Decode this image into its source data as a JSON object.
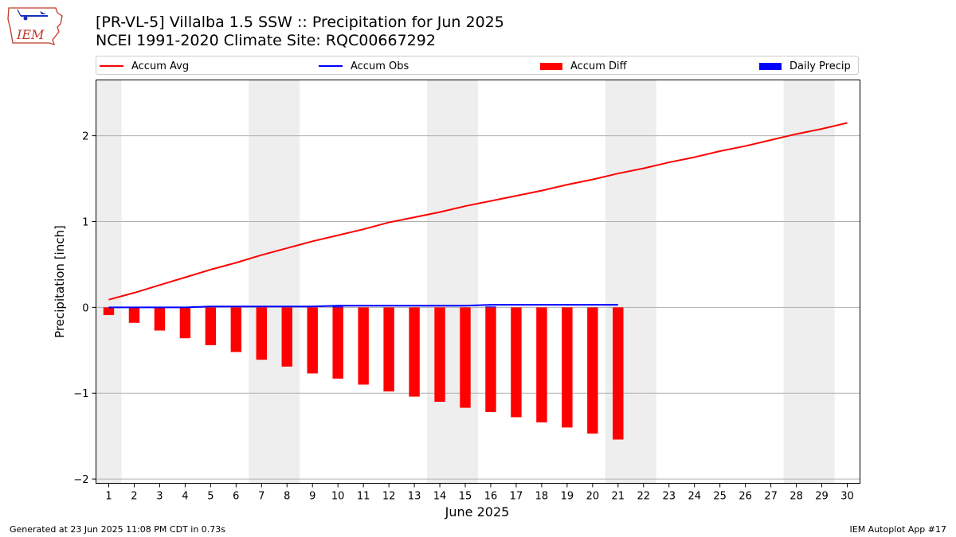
{
  "header": {
    "title_line1": "[PR-VL-5] Villalba 1.5 SSW :: Precipitation for Jun 2025",
    "title_line2": "NCEI 1991-2020 Climate Site: RQC00667292",
    "logo_text": "IEM"
  },
  "legend": {
    "items": [
      {
        "label": "Accum Avg",
        "color": "#ff0000",
        "kind": "line"
      },
      {
        "label": "Accum Obs",
        "color": "#0000ff",
        "kind": "line"
      },
      {
        "label": "Accum Diff",
        "color": "#ff0000",
        "kind": "bar"
      },
      {
        "label": "Daily Precip",
        "color": "#0000ff",
        "kind": "bar"
      }
    ]
  },
  "footer": {
    "left": "Generated at 23 Jun 2025 11:08 PM CDT in 0.73s",
    "right": "IEM Autoplot App #17"
  },
  "chart_data": {
    "type": "bar",
    "xlabel": "June 2025",
    "ylabel": "Precipitation [inch]",
    "xlim": [
      0.5,
      30.5
    ],
    "ylim": [
      -2.05,
      2.65
    ],
    "yticks": [
      2,
      1,
      0,
      -1,
      -2
    ],
    "ytick_labels": [
      "2",
      "1",
      "0",
      "−1",
      "−2"
    ],
    "days": [
      1,
      2,
      3,
      4,
      5,
      6,
      7,
      8,
      9,
      10,
      11,
      12,
      13,
      14,
      15,
      16,
      17,
      18,
      19,
      20,
      21,
      22,
      23,
      24,
      25,
      26,
      27,
      28,
      29,
      30
    ],
    "weekend_shading": [
      [
        0.5,
        1.5
      ],
      [
        6.5,
        8.5
      ],
      [
        13.5,
        15.5
      ],
      [
        20.5,
        22.5
      ],
      [
        27.5,
        29.5
      ]
    ],
    "grid": "y",
    "shade_color": "#eeeeee",
    "series": [
      {
        "name": "Accum Avg",
        "kind": "line",
        "color": "#ff0000",
        "x": [
          1,
          2,
          3,
          4,
          5,
          6,
          7,
          8,
          9,
          10,
          11,
          12,
          13,
          14,
          15,
          16,
          17,
          18,
          19,
          20,
          21,
          22,
          23,
          24,
          25,
          26,
          27,
          28,
          29,
          30
        ],
        "values": [
          0.09,
          0.17,
          0.26,
          0.35,
          0.44,
          0.52,
          0.61,
          0.69,
          0.77,
          0.84,
          0.91,
          0.99,
          1.05,
          1.11,
          1.18,
          1.24,
          1.3,
          1.36,
          1.43,
          1.49,
          1.56,
          1.62,
          1.69,
          1.75,
          1.82,
          1.88,
          1.95,
          2.02,
          2.08,
          2.15
        ]
      },
      {
        "name": "Accum Obs",
        "kind": "line",
        "color": "#0000ff",
        "x": [
          1,
          2,
          3,
          4,
          5,
          6,
          7,
          8,
          9,
          10,
          11,
          12,
          13,
          14,
          15,
          16,
          17,
          18,
          19,
          20,
          21
        ],
        "values": [
          0.0,
          0.0,
          0.0,
          0.0,
          0.01,
          0.01,
          0.01,
          0.01,
          0.01,
          0.02,
          0.02,
          0.02,
          0.02,
          0.02,
          0.02,
          0.03,
          0.03,
          0.03,
          0.03,
          0.03,
          0.03
        ]
      },
      {
        "name": "Accum Diff",
        "kind": "bar",
        "color": "#ff0000",
        "x": [
          1,
          2,
          3,
          4,
          5,
          6,
          7,
          8,
          9,
          10,
          11,
          12,
          13,
          14,
          15,
          16,
          17,
          18,
          19,
          20,
          21
        ],
        "values": [
          -0.09,
          -0.18,
          -0.27,
          -0.36,
          -0.44,
          -0.52,
          -0.61,
          -0.69,
          -0.77,
          -0.83,
          -0.9,
          -0.98,
          -1.04,
          -1.1,
          -1.17,
          -1.22,
          -1.28,
          -1.34,
          -1.4,
          -1.47,
          -1.54
        ]
      },
      {
        "name": "Daily Precip",
        "kind": "bar",
        "color": "#0000ff",
        "x": [
          10,
          16
        ],
        "values": [
          0.01,
          0.01
        ]
      }
    ]
  }
}
